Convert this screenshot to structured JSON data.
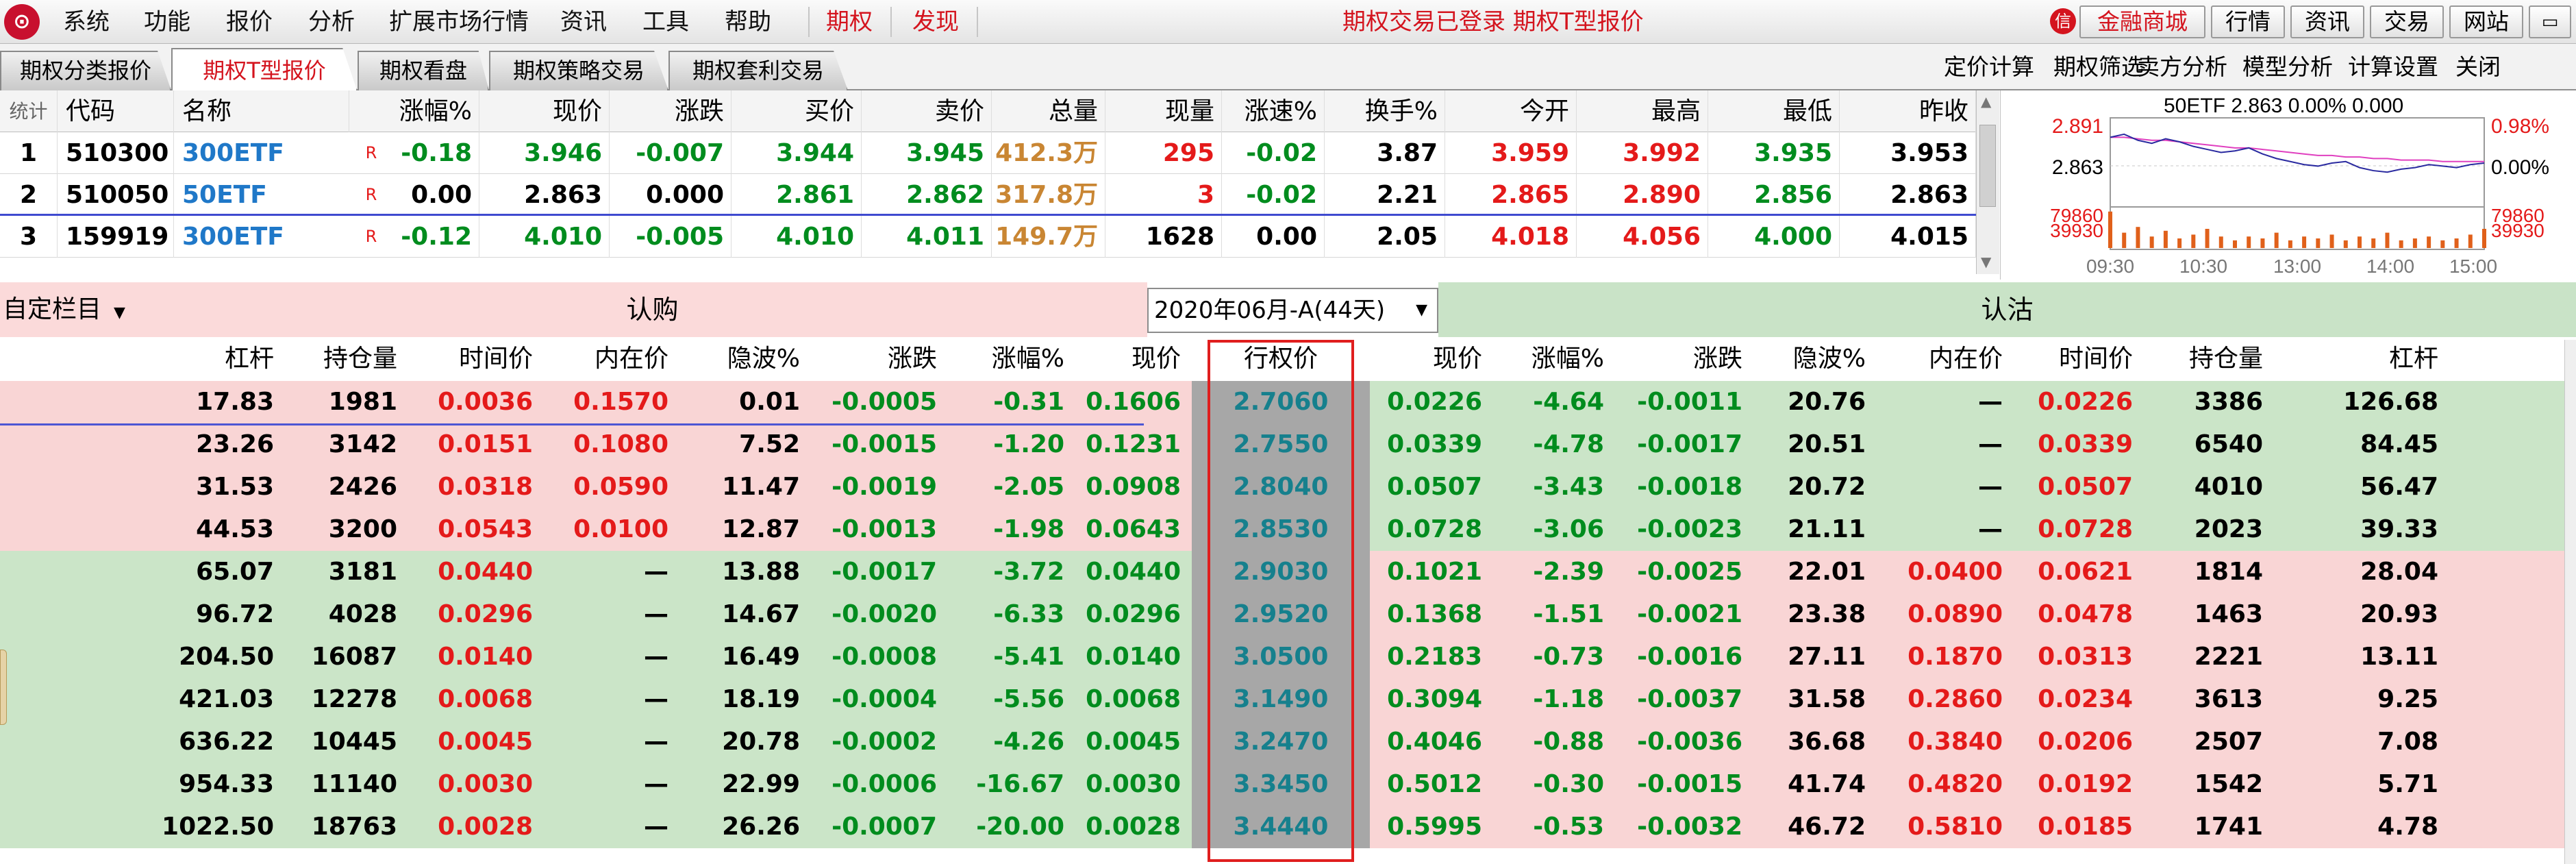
{
  "menubar": {
    "items": [
      "系统",
      "功能",
      "报价",
      "分析",
      "扩展市场行情",
      "资讯",
      "工具",
      "帮助"
    ],
    "highlight_items": [
      "期权",
      "发现"
    ],
    "status": "期权交易已登录  期权T型报价",
    "mall_label": "金融商城",
    "buttons": [
      "行情",
      "资讯",
      "交易",
      "网站"
    ]
  },
  "tabs": [
    "期权分类报价",
    "期权T型报价",
    "期权看盘",
    "期权策略交易",
    "期权套利交易"
  ],
  "active_tab_index": 1,
  "tools": [
    "定价计算",
    "期权筛选",
    "卖方分析",
    "模型分析",
    "计算设置",
    "关闭"
  ],
  "quote_table": {
    "headers": [
      "统计",
      "代码",
      "名称",
      "涨幅%",
      "现价",
      "涨跌",
      "买价",
      "卖价",
      "总量",
      "现量",
      "涨速%",
      "换手%",
      "今开",
      "最高",
      "最低",
      "昨收"
    ],
    "rows": [
      {
        "no": "1",
        "code": "510300",
        "name": "300ETF",
        "flag": "R",
        "chg_pct": "-0.18",
        "price": "3.946",
        "chg": "-0.007",
        "bid": "3.944",
        "ask": "3.945",
        "vol": "412.3万",
        "cur_vol": "295",
        "speed": "-0.02",
        "turnover": "3.87",
        "open": "3.959",
        "high": "3.992",
        "low": "3.935",
        "prev": "3.953"
      },
      {
        "no": "2",
        "code": "510050",
        "name": "50ETF",
        "flag": "R",
        "chg_pct": "0.00",
        "price": "2.863",
        "chg": "0.000",
        "bid": "2.861",
        "ask": "2.862",
        "vol": "317.8万",
        "cur_vol": "3",
        "speed": "-0.02",
        "turnover": "2.21",
        "open": "2.865",
        "high": "2.890",
        "low": "2.856",
        "prev": "2.863"
      },
      {
        "no": "3",
        "code": "159919",
        "name": "300ETF",
        "flag": "R",
        "chg_pct": "-0.12",
        "price": "4.010",
        "chg": "-0.005",
        "bid": "4.010",
        "ask": "4.011",
        "vol": "149.7万",
        "cur_vol": "1628",
        "speed": "0.00",
        "turnover": "2.05",
        "open": "4.018",
        "high": "4.056",
        "low": "4.000",
        "prev": "4.015"
      }
    ]
  },
  "mini_chart": {
    "title": "50ETF  2.863  0.00%  0.000",
    "left_labels": {
      "high": "2.891",
      "mid": "2.863",
      "vol_high": "79860",
      "vol_mid": "39930"
    },
    "right_labels": {
      "high": "0.98%",
      "mid": "0.00%",
      "vol_high": "79860",
      "vol_mid": "39930"
    },
    "time_labels": [
      "09:30",
      "10:30",
      "13:00",
      "14:00",
      "15:00"
    ],
    "price_series": [
      2.88,
      2.882,
      2.878,
      2.876,
      2.879,
      2.877,
      2.874,
      2.872,
      2.87,
      2.871,
      2.873,
      2.869,
      2.866,
      2.864,
      2.862,
      2.861,
      2.863,
      2.864,
      2.86,
      2.858,
      2.857,
      2.859,
      2.86,
      2.862,
      2.861,
      2.86,
      2.862,
      2.863
    ],
    "avg_series": [
      2.88,
      2.88,
      2.879,
      2.878,
      2.878,
      2.877,
      2.876,
      2.875,
      2.874,
      2.873,
      2.873,
      2.872,
      2.871,
      2.87,
      2.869,
      2.868,
      2.868,
      2.867,
      2.867,
      2.866,
      2.866,
      2.865,
      2.865,
      2.865,
      2.864,
      2.864,
      2.864,
      2.864
    ],
    "volume_series": [
      0.95,
      0.4,
      0.55,
      0.3,
      0.45,
      0.25,
      0.35,
      0.5,
      0.3,
      0.2,
      0.3,
      0.25,
      0.4,
      0.2,
      0.3,
      0.25,
      0.35,
      0.2,
      0.3,
      0.25,
      0.4,
      0.2,
      0.25,
      0.3,
      0.2,
      0.25,
      0.35,
      0.5
    ],
    "colors": {
      "price": "#2a2aa0",
      "avg": "#e040c0",
      "volume": "#e0601a",
      "axis_red": "#e41a1a"
    }
  },
  "t_table": {
    "custom_label": "自定栏目",
    "call_label": "认购",
    "put_label": "认沽",
    "expiry": "2020年06月-A(44天)",
    "call_headers": [
      "杠杆",
      "持仓量",
      "时间价",
      "内在价",
      "隐波%",
      "涨跌",
      "涨幅%",
      "现价"
    ],
    "strike_header": "行权价",
    "put_headers": [
      "现价",
      "涨幅%",
      "涨跌",
      "隐波%",
      "内在价",
      "时间价",
      "持仓量",
      "杠杆"
    ],
    "rows": [
      {
        "c": [
          "17.83",
          "1981",
          "0.0036",
          "0.1570",
          "0.01",
          "-0.0005",
          "-0.31",
          "0.1606"
        ],
        "k": "2.7060",
        "p": [
          "0.0226",
          "-4.64",
          "-0.0011",
          "20.76",
          "—",
          "0.0226",
          "3386",
          "126.68"
        ],
        "call_itm": true
      },
      {
        "c": [
          "23.26",
          "3142",
          "0.0151",
          "0.1080",
          "7.52",
          "-0.0015",
          "-1.20",
          "0.1231"
        ],
        "k": "2.7550",
        "p": [
          "0.0339",
          "-4.78",
          "-0.0017",
          "20.51",
          "—",
          "0.0339",
          "6540",
          "84.45"
        ],
        "call_itm": true
      },
      {
        "c": [
          "31.53",
          "2426",
          "0.0318",
          "0.0590",
          "11.47",
          "-0.0019",
          "-2.05",
          "0.0908"
        ],
        "k": "2.8040",
        "p": [
          "0.0507",
          "-3.43",
          "-0.0018",
          "20.72",
          "—",
          "0.0507",
          "4010",
          "56.47"
        ],
        "call_itm": true
      },
      {
        "c": [
          "44.53",
          "3200",
          "0.0543",
          "0.0100",
          "12.87",
          "-0.0013",
          "-1.98",
          "0.0643"
        ],
        "k": "2.8530",
        "p": [
          "0.0728",
          "-3.06",
          "-0.0023",
          "21.11",
          "—",
          "0.0728",
          "2023",
          "39.33"
        ],
        "call_itm": true
      },
      {
        "c": [
          "65.07",
          "3181",
          "0.0440",
          "—",
          "13.88",
          "-0.0017",
          "-3.72",
          "0.0440"
        ],
        "k": "2.9030",
        "p": [
          "0.1021",
          "-2.39",
          "-0.0025",
          "22.01",
          "0.0400",
          "0.0621",
          "1814",
          "28.04"
        ],
        "call_itm": false
      },
      {
        "c": [
          "96.72",
          "4028",
          "0.0296",
          "—",
          "14.67",
          "-0.0020",
          "-6.33",
          "0.0296"
        ],
        "k": "2.9520",
        "p": [
          "0.1368",
          "-1.51",
          "-0.0021",
          "23.38",
          "0.0890",
          "0.0478",
          "1463",
          "20.93"
        ],
        "call_itm": false
      },
      {
        "c": [
          "204.50",
          "16087",
          "0.0140",
          "—",
          "16.49",
          "-0.0008",
          "-5.41",
          "0.0140"
        ],
        "k": "3.0500",
        "p": [
          "0.2183",
          "-0.73",
          "-0.0016",
          "27.11",
          "0.1870",
          "0.0313",
          "2221",
          "13.11"
        ],
        "call_itm": false
      },
      {
        "c": [
          "421.03",
          "12278",
          "0.0068",
          "—",
          "18.19",
          "-0.0004",
          "-5.56",
          "0.0068"
        ],
        "k": "3.1490",
        "p": [
          "0.3094",
          "-1.18",
          "-0.0037",
          "31.58",
          "0.2860",
          "0.0234",
          "3613",
          "9.25"
        ],
        "call_itm": false
      },
      {
        "c": [
          "636.22",
          "10445",
          "0.0045",
          "—",
          "20.78",
          "-0.0002",
          "-4.26",
          "0.0045"
        ],
        "k": "3.2470",
        "p": [
          "0.4046",
          "-0.88",
          "-0.0036",
          "36.68",
          "0.3840",
          "0.0206",
          "2507",
          "7.08"
        ],
        "call_itm": false
      },
      {
        "c": [
          "954.33",
          "11140",
          "0.0030",
          "—",
          "22.99",
          "-0.0006",
          "-16.67",
          "0.0030"
        ],
        "k": "3.3450",
        "p": [
          "0.5012",
          "-0.30",
          "-0.0015",
          "41.74",
          "0.4820",
          "0.0192",
          "1542",
          "5.71"
        ],
        "call_itm": false
      },
      {
        "c": [
          "1022.50",
          "18763",
          "0.0028",
          "—",
          "26.26",
          "-0.0007",
          "-20.00",
          "0.0028"
        ],
        "k": "3.4440",
        "p": [
          "0.5995",
          "-0.53",
          "-0.0032",
          "46.72",
          "0.5810",
          "0.0185",
          "1741",
          "4.78"
        ],
        "call_itm": false
      }
    ]
  }
}
